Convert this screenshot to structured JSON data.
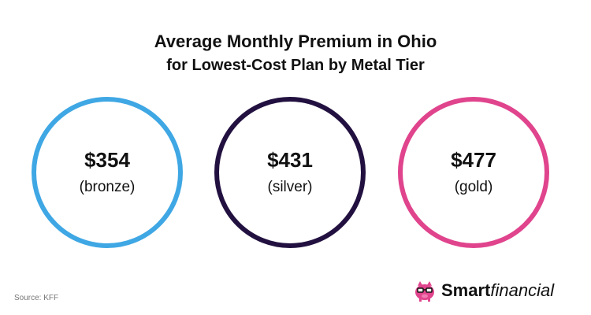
{
  "chart_data": {
    "type": "bubble",
    "title": "Average Monthly Premium in Ohio",
    "subtitle": "for Lowest-Cost Plan by Metal Tier",
    "categories": [
      "(bronze)",
      "(silver)",
      "(gold)"
    ],
    "values": [
      354,
      431,
      477
    ],
    "value_labels": [
      "$354",
      "$431",
      "$477"
    ],
    "colors": [
      "#3fa7e4",
      "#221140",
      "#e0448d"
    ]
  },
  "footer": {
    "source": "Source: KFF",
    "brand_strong": "Smart",
    "brand_light": "financial",
    "brand_icon": "piggy-bank-glasses-icon"
  }
}
